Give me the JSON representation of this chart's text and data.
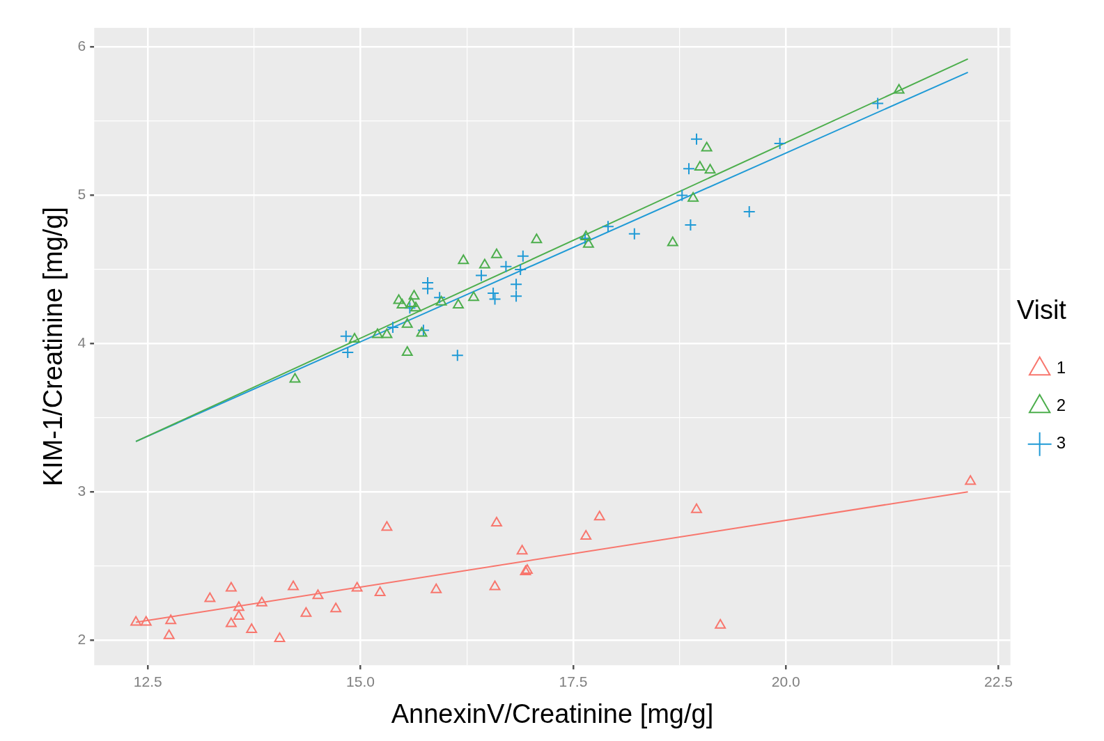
{
  "chart_data": {
    "type": "scatter",
    "xlabel": "AnnexinV/Creatinine [mg/g]",
    "ylabel": "KIM-1/Creatinine [mg/g]",
    "legend_title": "Visit",
    "legend": "right",
    "grid": true,
    "xlim": [
      11.87,
      22.64
    ],
    "ylim": [
      1.83,
      6.13
    ],
    "xticks": [
      {
        "value": 12.5,
        "label": "12.5"
      },
      {
        "value": 13.75,
        "label": null
      },
      {
        "value": 15,
        "label": "15.0"
      },
      {
        "value": 16.25,
        "label": null
      },
      {
        "value": 17.5,
        "label": "17.5"
      },
      {
        "value": 18.75,
        "label": null
      },
      {
        "value": 20,
        "label": "20.0"
      },
      {
        "value": 21.25,
        "label": null
      },
      {
        "value": 22.5,
        "label": "22.5"
      }
    ],
    "yticks": [
      2,
      {
        "value": 2.5,
        "label": null
      },
      3,
      {
        "value": 3.5,
        "label": null
      },
      4,
      {
        "value": 4.5,
        "label": null
      },
      5,
      {
        "value": 5.5,
        "label": null
      },
      6
    ],
    "series": [
      {
        "name": "1",
        "marker": "triangle",
        "color": "#f8766d",
        "x": [
          12.36,
          12.48,
          12.77,
          12.75,
          13.23,
          13.48,
          13.48,
          13.57,
          13.57,
          13.72,
          13.84,
          14.05,
          14.21,
          14.36,
          14.5,
          14.71,
          14.96,
          15.23,
          15.31,
          15.89,
          16.58,
          16.6,
          16.9,
          16.94,
          16.96,
          17.65,
          17.81,
          18.95,
          19.23,
          22.17
        ],
        "values": [
          2.12,
          2.12,
          2.13,
          2.03,
          2.28,
          2.35,
          2.11,
          2.22,
          2.16,
          2.07,
          2.25,
          2.01,
          2.36,
          2.18,
          2.3,
          2.21,
          2.35,
          2.32,
          2.76,
          2.34,
          2.36,
          2.79,
          2.6,
          2.46,
          2.47,
          2.7,
          2.83,
          2.88,
          2.1,
          3.07
        ]
      },
      {
        "name": "2",
        "marker": "triangle",
        "color": "#4cae4c",
        "x": [
          14.23,
          14.93,
          15.2,
          15.31,
          15.55,
          15.45,
          15.49,
          15.55,
          15.6,
          15.63,
          15.65,
          15.72,
          15.95,
          16.15,
          16.21,
          16.33,
          16.46,
          16.6,
          17.07,
          17.65,
          17.68,
          18.67,
          18.91,
          18.99,
          19.07,
          19.11,
          21.33
        ],
        "values": [
          3.76,
          4.03,
          4.06,
          4.06,
          3.94,
          4.29,
          4.26,
          4.13,
          4.27,
          4.32,
          4.24,
          4.07,
          4.28,
          4.26,
          4.56,
          4.31,
          4.53,
          4.6,
          4.7,
          4.72,
          4.67,
          4.68,
          4.98,
          5.19,
          5.32,
          5.17,
          5.71
        ]
      },
      {
        "name": "3",
        "marker": "cross",
        "color": "#1f9ad6",
        "x": [
          14.83,
          14.85,
          15.38,
          15.58,
          15.74,
          15.79,
          15.79,
          15.93,
          16.14,
          16.42,
          16.56,
          16.58,
          16.71,
          16.83,
          16.83,
          16.88,
          16.91,
          17.64,
          17.91,
          18.22,
          18.78,
          18.86,
          18.88,
          18.95,
          19.57,
          19.93,
          21.08
        ],
        "values": [
          4.05,
          3.94,
          4.11,
          4.24,
          4.09,
          4.41,
          4.37,
          4.31,
          3.92,
          4.46,
          4.34,
          4.3,
          4.52,
          4.4,
          4.32,
          4.5,
          4.59,
          4.71,
          4.79,
          4.74,
          5.0,
          5.18,
          4.8,
          5.38,
          4.89,
          5.35,
          5.62
        ]
      },
      {
        "type": "line",
        "marker": "none",
        "color": "#f8766d",
        "x": [
          12.36,
          22.14
        ],
        "values": [
          2.12,
          3.0
        ]
      },
      {
        "type": "line",
        "marker": "none",
        "color": "#4cae4c",
        "x": [
          12.36,
          22.14
        ],
        "values": [
          3.34,
          5.92
        ]
      },
      {
        "type": "line",
        "marker": "none",
        "color": "#1f9ad6",
        "x": [
          12.36,
          22.14
        ],
        "values": [
          3.34,
          5.83
        ]
      }
    ]
  }
}
